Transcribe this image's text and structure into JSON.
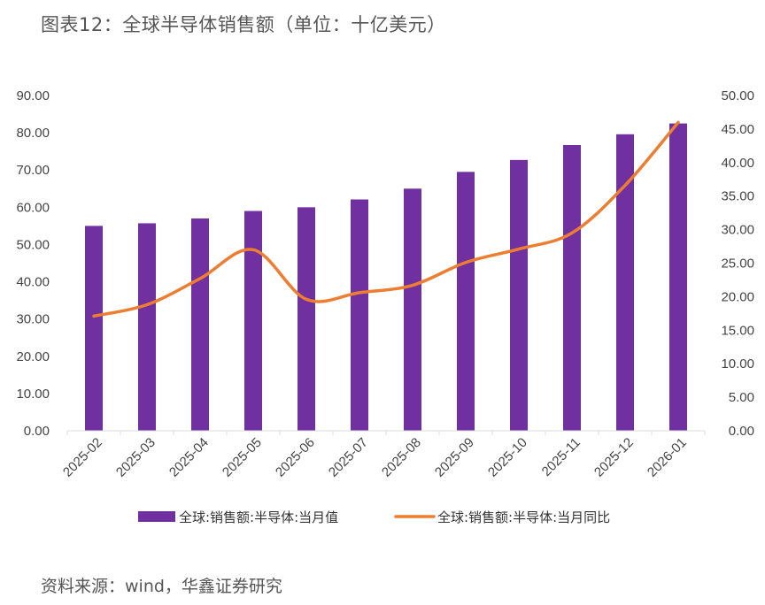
{
  "title": "图表12：全球半导体销售额（单位：十亿美元）",
  "source": "资料来源：wind，华鑫证券研究",
  "colors": {
    "bar": "#7030A0",
    "line": "#ED7D31",
    "axis": "#d9d9d9"
  },
  "chart_data": {
    "type": "bar",
    "categories": [
      "2025-02",
      "2025-03",
      "2025-04",
      "2025-05",
      "2025-06",
      "2025-07",
      "2025-08",
      "2025-09",
      "2025-10",
      "2025-11",
      "2025-12",
      "2026-01"
    ],
    "series": [
      {
        "name": "全球:销售额:半导体:当月值",
        "type": "bar",
        "axis": "left",
        "values": [
          55.0,
          55.7,
          57.0,
          59.0,
          60.0,
          62.1,
          65.0,
          69.5,
          72.7,
          76.7,
          79.6,
          82.5
        ]
      },
      {
        "name": "全球:销售额:半导体:当月同比",
        "type": "line",
        "axis": "right",
        "values": [
          17.1,
          18.8,
          22.7,
          27.0,
          19.6,
          20.6,
          21.7,
          25.1,
          27.1,
          29.5,
          36.6,
          46.0
        ]
      }
    ],
    "y_left": {
      "range": [
        0,
        90
      ],
      "ticks": [
        "0.00",
        "10.00",
        "20.00",
        "30.00",
        "40.00",
        "50.00",
        "60.00",
        "70.00",
        "80.00",
        "90.00"
      ]
    },
    "y_right": {
      "range": [
        0,
        50
      ],
      "ticks": [
        "0.00",
        "5.00",
        "10.00",
        "15.00",
        "20.00",
        "25.00",
        "30.00",
        "35.00",
        "40.00",
        "45.00",
        "50.00"
      ]
    },
    "grid": false,
    "legend_position": "bottom"
  }
}
